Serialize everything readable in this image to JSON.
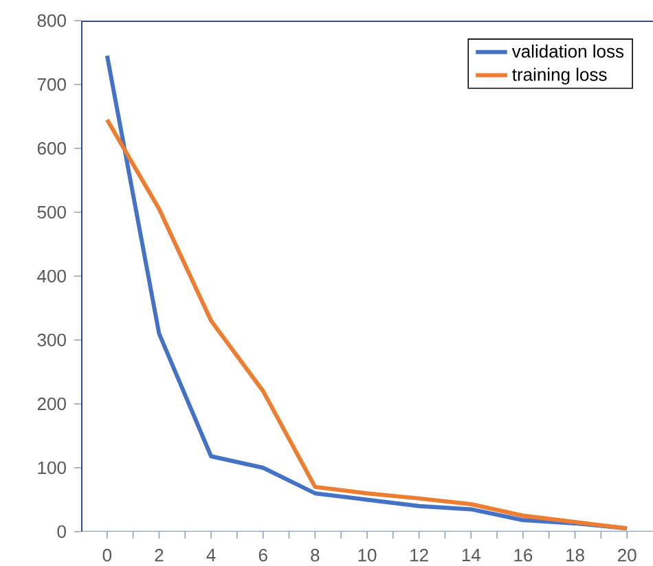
{
  "chart_data": {
    "type": "line",
    "x": [
      0,
      2,
      4,
      6,
      8,
      10,
      12,
      14,
      16,
      18,
      20
    ],
    "series": [
      {
        "name": "validation loss",
        "color": "#4472c4",
        "values": [
          745,
          310,
          118,
          100,
          60,
          50,
          40,
          35,
          18,
          13,
          5
        ]
      },
      {
        "name": "training loss",
        "color": "#ed7d31",
        "values": [
          645,
          505,
          330,
          220,
          70,
          60,
          52,
          43,
          25,
          15,
          5
        ]
      }
    ],
    "xlim": [
      -1,
      21
    ],
    "xticks": [
      0,
      {
        "value": 1,
        "label": null
      },
      2,
      {
        "value": 3,
        "label": null
      },
      4,
      {
        "value": 5,
        "label": null
      },
      6,
      {
        "value": 7,
        "label": null
      },
      8,
      {
        "value": 9,
        "label": null
      },
      10,
      {
        "value": 11,
        "label": null
      },
      12,
      {
        "value": 13,
        "label": null
      },
      14,
      {
        "value": 15,
        "label": null
      },
      16,
      {
        "value": 17,
        "label": null
      },
      18,
      {
        "value": 19,
        "label": null
      },
      20
    ],
    "ylim": [
      0,
      800
    ],
    "yticks": [
      0,
      100,
      200,
      300,
      400,
      500,
      600,
      700,
      800
    ],
    "grid": false,
    "legend": "top right",
    "marker": "none",
    "line_style": "solid"
  }
}
